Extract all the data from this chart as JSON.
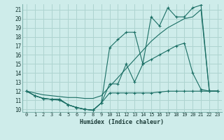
{
  "xlabel": "Humidex (Indice chaleur)",
  "bg_color": "#ceecea",
  "grid_color": "#aed4d0",
  "line_color": "#1a6e64",
  "xlim": [
    -0.5,
    23.5
  ],
  "ylim": [
    9.7,
    21.6
  ],
  "xticks": [
    0,
    1,
    2,
    3,
    4,
    5,
    6,
    7,
    8,
    9,
    10,
    11,
    12,
    13,
    14,
    15,
    16,
    17,
    18,
    19,
    20,
    21,
    22,
    23
  ],
  "yticks": [
    10,
    11,
    12,
    13,
    14,
    15,
    16,
    17,
    18,
    19,
    20,
    21
  ],
  "s1_x": [
    0,
    1,
    2,
    3,
    4,
    5,
    6,
    7,
    8,
    9,
    10,
    11,
    12,
    13,
    14,
    15,
    16,
    17,
    18,
    19,
    20,
    21,
    22,
    23
  ],
  "s1_y": [
    12,
    11.5,
    11.2,
    11.1,
    11.1,
    10.5,
    10.2,
    10.0,
    9.9,
    10.7,
    11.8,
    11.8,
    11.8,
    11.8,
    11.8,
    11.8,
    11.9,
    12.0,
    12.0,
    12.0,
    12.0,
    12.0,
    12.0,
    12.0
  ],
  "s2_x": [
    0,
    1,
    2,
    3,
    4,
    5,
    6,
    7,
    8,
    9,
    10,
    11,
    12,
    13,
    14,
    15,
    16,
    17,
    18,
    19,
    20,
    21,
    22,
    23
  ],
  "s2_y": [
    12,
    11.5,
    11.2,
    11.1,
    11.1,
    10.5,
    10.2,
    10.0,
    9.9,
    10.7,
    12.8,
    12.8,
    15.0,
    13.0,
    15.0,
    15.5,
    16.0,
    16.5,
    17.0,
    17.3,
    14.0,
    12.2,
    12.0,
    12.0
  ],
  "s3_x": [
    0,
    1,
    2,
    3,
    4,
    5,
    6,
    7,
    8,
    9,
    10,
    11,
    12,
    13,
    14,
    15,
    16,
    17,
    18,
    19,
    20,
    21,
    22,
    23
  ],
  "s3_y": [
    12,
    11.5,
    11.2,
    11.1,
    11.0,
    10.5,
    10.2,
    10.0,
    9.9,
    10.7,
    16.8,
    17.7,
    18.5,
    18.5,
    15.0,
    20.2,
    19.2,
    21.2,
    20.2,
    20.2,
    21.2,
    21.5,
    12.0,
    12.0
  ],
  "s4_x": [
    0,
    1,
    2,
    3,
    4,
    5,
    6,
    7,
    8,
    9,
    10,
    11,
    12,
    13,
    14,
    15,
    16,
    17,
    18,
    19,
    20,
    21,
    22,
    23
  ],
  "s4_y": [
    12,
    11.8,
    11.6,
    11.5,
    11.4,
    11.3,
    11.3,
    11.2,
    11.2,
    11.5,
    12.5,
    13.5,
    14.5,
    15.5,
    16.5,
    17.5,
    18.3,
    19.0,
    19.5,
    20.0,
    20.2,
    21.0,
    12.0,
    12.0
  ]
}
